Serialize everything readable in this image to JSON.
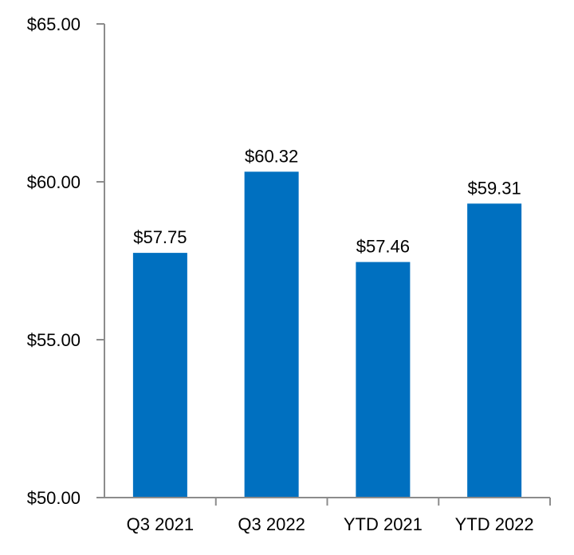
{
  "chart_data": {
    "type": "bar",
    "title": "",
    "xlabel": "",
    "ylabel": "",
    "categories": [
      "Q3 2021",
      "Q3 2022",
      "YTD 2021",
      "YTD 2022"
    ],
    "values": [
      57.75,
      60.32,
      57.46,
      59.31
    ],
    "data_labels": [
      "$57.75",
      "$60.32",
      "$57.46",
      "$59.31"
    ],
    "ylim": [
      50,
      65
    ],
    "y_ticks": [
      50,
      55,
      60,
      65
    ],
    "y_tick_labels": [
      "$50.00",
      "$55.00",
      "$60.00",
      "$65.00"
    ],
    "grid": false,
    "legend": "none",
    "bar_color": "#0070c0",
    "axis_color": "#8c8c8c"
  }
}
